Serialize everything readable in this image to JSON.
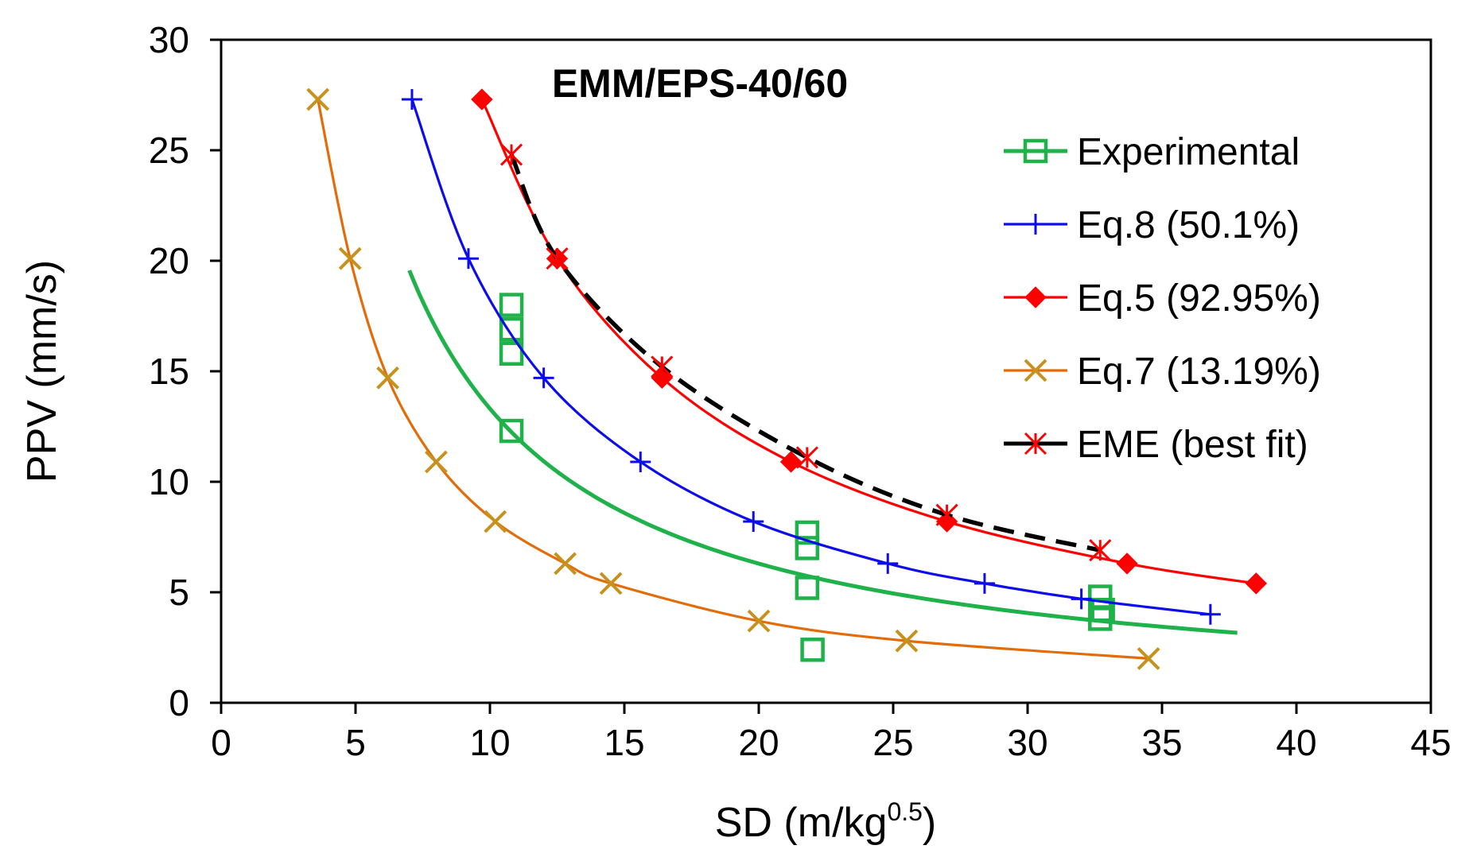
{
  "chart_data": {
    "type": "scatter",
    "title": "EMM/EPS-40/60",
    "xlabel": "SD (m/kg",
    "xlabel_sup": "0.5",
    "xlabel_end": ")",
    "ylabel": "PPV (mm/s)",
    "xlim": [
      0,
      45
    ],
    "ylim": [
      0,
      30
    ],
    "xticks": [
      0,
      5,
      10,
      15,
      20,
      25,
      30,
      35,
      40,
      45
    ],
    "yticks": [
      0,
      5,
      10,
      15,
      20,
      25,
      30
    ],
    "grid": false,
    "legend_position": "right",
    "series": [
      {
        "name": "Experimental",
        "color": "#1fb24a",
        "marker": "square",
        "fit_curve": {
          "x_start": 7.0,
          "x_end": 37.8,
          "a": 160,
          "b": 1.08
        },
        "points": [
          [
            10.8,
            18.0
          ],
          [
            10.8,
            16.9
          ],
          [
            10.8,
            15.8
          ],
          [
            10.8,
            12.3
          ],
          [
            21.8,
            7.7
          ],
          [
            21.8,
            7.0
          ],
          [
            21.8,
            5.2
          ],
          [
            22.0,
            2.4
          ],
          [
            32.7,
            4.8
          ],
          [
            32.8,
            4.2
          ],
          [
            32.7,
            3.8
          ]
        ]
      },
      {
        "name": "Eq.8 (50.1%)",
        "color": "#0d0deb",
        "marker": "plus",
        "line": "solid",
        "points": [
          [
            7.1,
            27.3
          ],
          [
            9.2,
            20.1
          ],
          [
            12.0,
            14.7
          ],
          [
            15.6,
            10.9
          ],
          [
            19.8,
            8.2
          ],
          [
            24.8,
            6.3
          ],
          [
            28.4,
            5.4
          ],
          [
            32.0,
            4.7
          ],
          [
            36.8,
            4.0
          ]
        ]
      },
      {
        "name": "Eq.5 (92.95%)",
        "color": "#ff0000",
        "marker": "diamond",
        "line": "solid",
        "points": [
          [
            9.7,
            27.3
          ],
          [
            12.5,
            20.1
          ],
          [
            16.4,
            14.7
          ],
          [
            21.2,
            10.9
          ],
          [
            27.0,
            8.2
          ],
          [
            33.7,
            6.3
          ],
          [
            38.5,
            5.4
          ]
        ]
      },
      {
        "name": "Eq.7 (13.19%)",
        "color": "#e36c0a",
        "marker_color": "#c7911e",
        "marker": "x",
        "line": "solid",
        "points": [
          [
            3.6,
            27.3
          ],
          [
            4.8,
            20.1
          ],
          [
            6.2,
            14.7
          ],
          [
            8.0,
            10.9
          ],
          [
            10.2,
            8.2
          ],
          [
            12.8,
            6.3
          ],
          [
            14.5,
            5.4
          ],
          [
            20.0,
            3.7
          ],
          [
            25.5,
            2.8
          ],
          [
            34.5,
            2.0
          ]
        ]
      },
      {
        "name": "EME (best fit)",
        "color": "#000000",
        "marker_color": "#ff0000",
        "marker": "asterisk",
        "line": "dashed",
        "points": [
          [
            10.8,
            24.8
          ],
          [
            12.5,
            20.1
          ],
          [
            16.4,
            15.2
          ],
          [
            21.8,
            11.1
          ],
          [
            27.0,
            8.5
          ],
          [
            32.7,
            6.9
          ]
        ]
      }
    ]
  }
}
